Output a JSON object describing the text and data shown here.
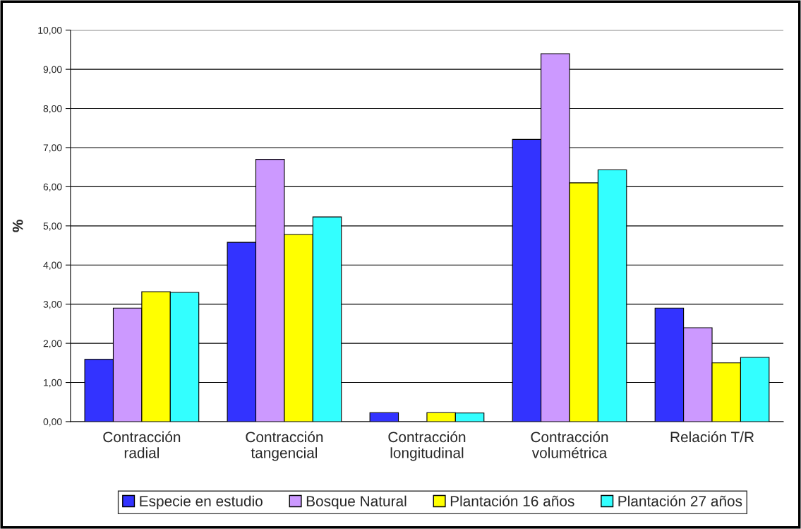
{
  "chart_data": {
    "type": "bar",
    "ylabel": "%",
    "categories": [
      "Contracción\nradial",
      "Contracción\ntangencial",
      "Contracción\nlongitudinal",
      "Contracción\nvolumétrica",
      "Relación T/R"
    ],
    "series": [
      {
        "name": "Especie en estudio",
        "color": "#3333ff",
        "values": [
          1.59,
          4.58,
          0.23,
          7.21,
          2.9
        ]
      },
      {
        "name": "Bosque Natural",
        "color": "#cc99ff",
        "values": [
          2.9,
          6.7,
          null,
          9.4,
          2.4
        ]
      },
      {
        "name": "Plantación 16 años",
        "color": "#ffff00",
        "values": [
          3.32,
          4.78,
          0.23,
          6.1,
          1.5
        ]
      },
      {
        "name": "Plantación 27 años",
        "color": "#33ffff",
        "values": [
          3.3,
          5.23,
          0.22,
          6.43,
          1.64
        ]
      }
    ],
    "ylim": [
      0,
      10
    ],
    "yticks": [
      {
        "value": 0,
        "label": "0,00"
      },
      {
        "value": 1,
        "label": "1,00"
      },
      {
        "value": 2,
        "label": "2,00"
      },
      {
        "value": 3,
        "label": "3,00"
      },
      {
        "value": 4,
        "label": "4,00"
      },
      {
        "value": 5,
        "label": "5,00"
      },
      {
        "value": 6,
        "label": "6,00"
      },
      {
        "value": 7,
        "label": "7,00"
      },
      {
        "value": 8,
        "label": "8,00"
      },
      {
        "value": 9,
        "label": "9,00"
      },
      {
        "value": 10,
        "label": "10,00"
      }
    ],
    "grid": "y",
    "legend": "bottom"
  }
}
